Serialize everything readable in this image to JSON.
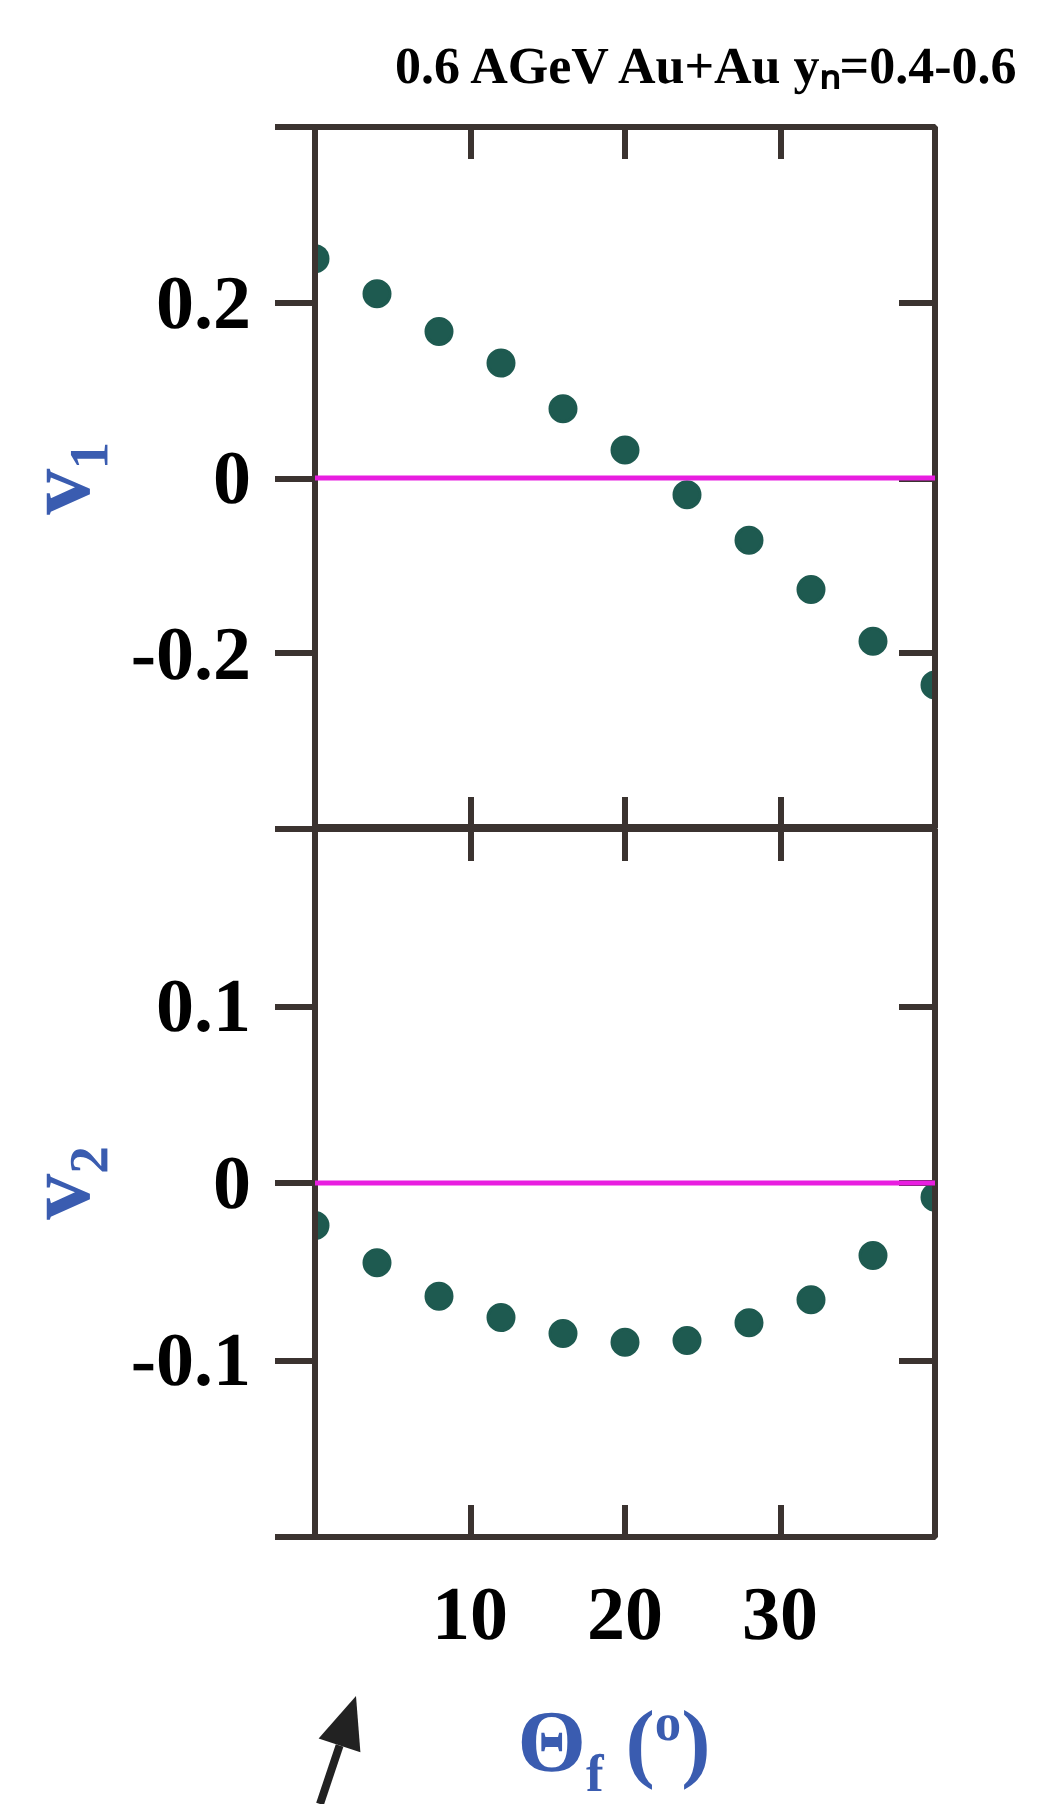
{
  "chart_data": [
    {
      "type": "scatter",
      "title": "0.6 AGeV Au+Au yₙ=0.4-0.6",
      "ylabel": "v₁",
      "x": [
        0,
        4,
        8,
        12,
        16,
        20,
        24,
        28,
        32,
        36,
        40
      ],
      "values": [
        0.25,
        0.21,
        0.167,
        0.131,
        0.079,
        0.032,
        -0.019,
        -0.071,
        -0.127,
        -0.186,
        -0.236
      ],
      "color": "#1e5a50",
      "marker": "circle",
      "xlim": [
        0,
        40
      ],
      "xticks": [
        10,
        20,
        30
      ],
      "ylim": [
        -0.4,
        0.4
      ],
      "yticks": [
        {
          "value": -0.4,
          "label": null
        },
        -0.2,
        0,
        0.2,
        {
          "value": 0.4,
          "label": null
        }
      ],
      "tick_labels": "y",
      "ref_lines": [
        {
          "axis": "y",
          "value": 0,
          "color": "#e81ee0"
        }
      ]
    },
    {
      "type": "scatter",
      "xlabel": "Θ$_{f}$ ($^{o}$)",
      "ylabel": "v₂",
      "x": [
        0,
        4,
        8,
        12,
        16,
        20,
        24,
        28,
        32,
        36,
        40
      ],
      "values": [
        -0.024,
        -0.045,
        -0.064,
        -0.076,
        -0.085,
        -0.09,
        -0.089,
        -0.079,
        -0.066,
        -0.041,
        -0.008
      ],
      "color": "#1e5a50",
      "marker": "circle",
      "xlim": [
        0,
        40
      ],
      "xticks": [
        10,
        20,
        30
      ],
      "ylim": [
        -0.2,
        0.2
      ],
      "yticks": [
        {
          "value": -0.2,
          "label": null
        },
        -0.1,
        0,
        0.1,
        {
          "value": 0.2,
          "label": null
        }
      ],
      "ref_lines": [
        {
          "axis": "y",
          "value": 0,
          "color": "#e81ee0"
        }
      ]
    }
  ]
}
